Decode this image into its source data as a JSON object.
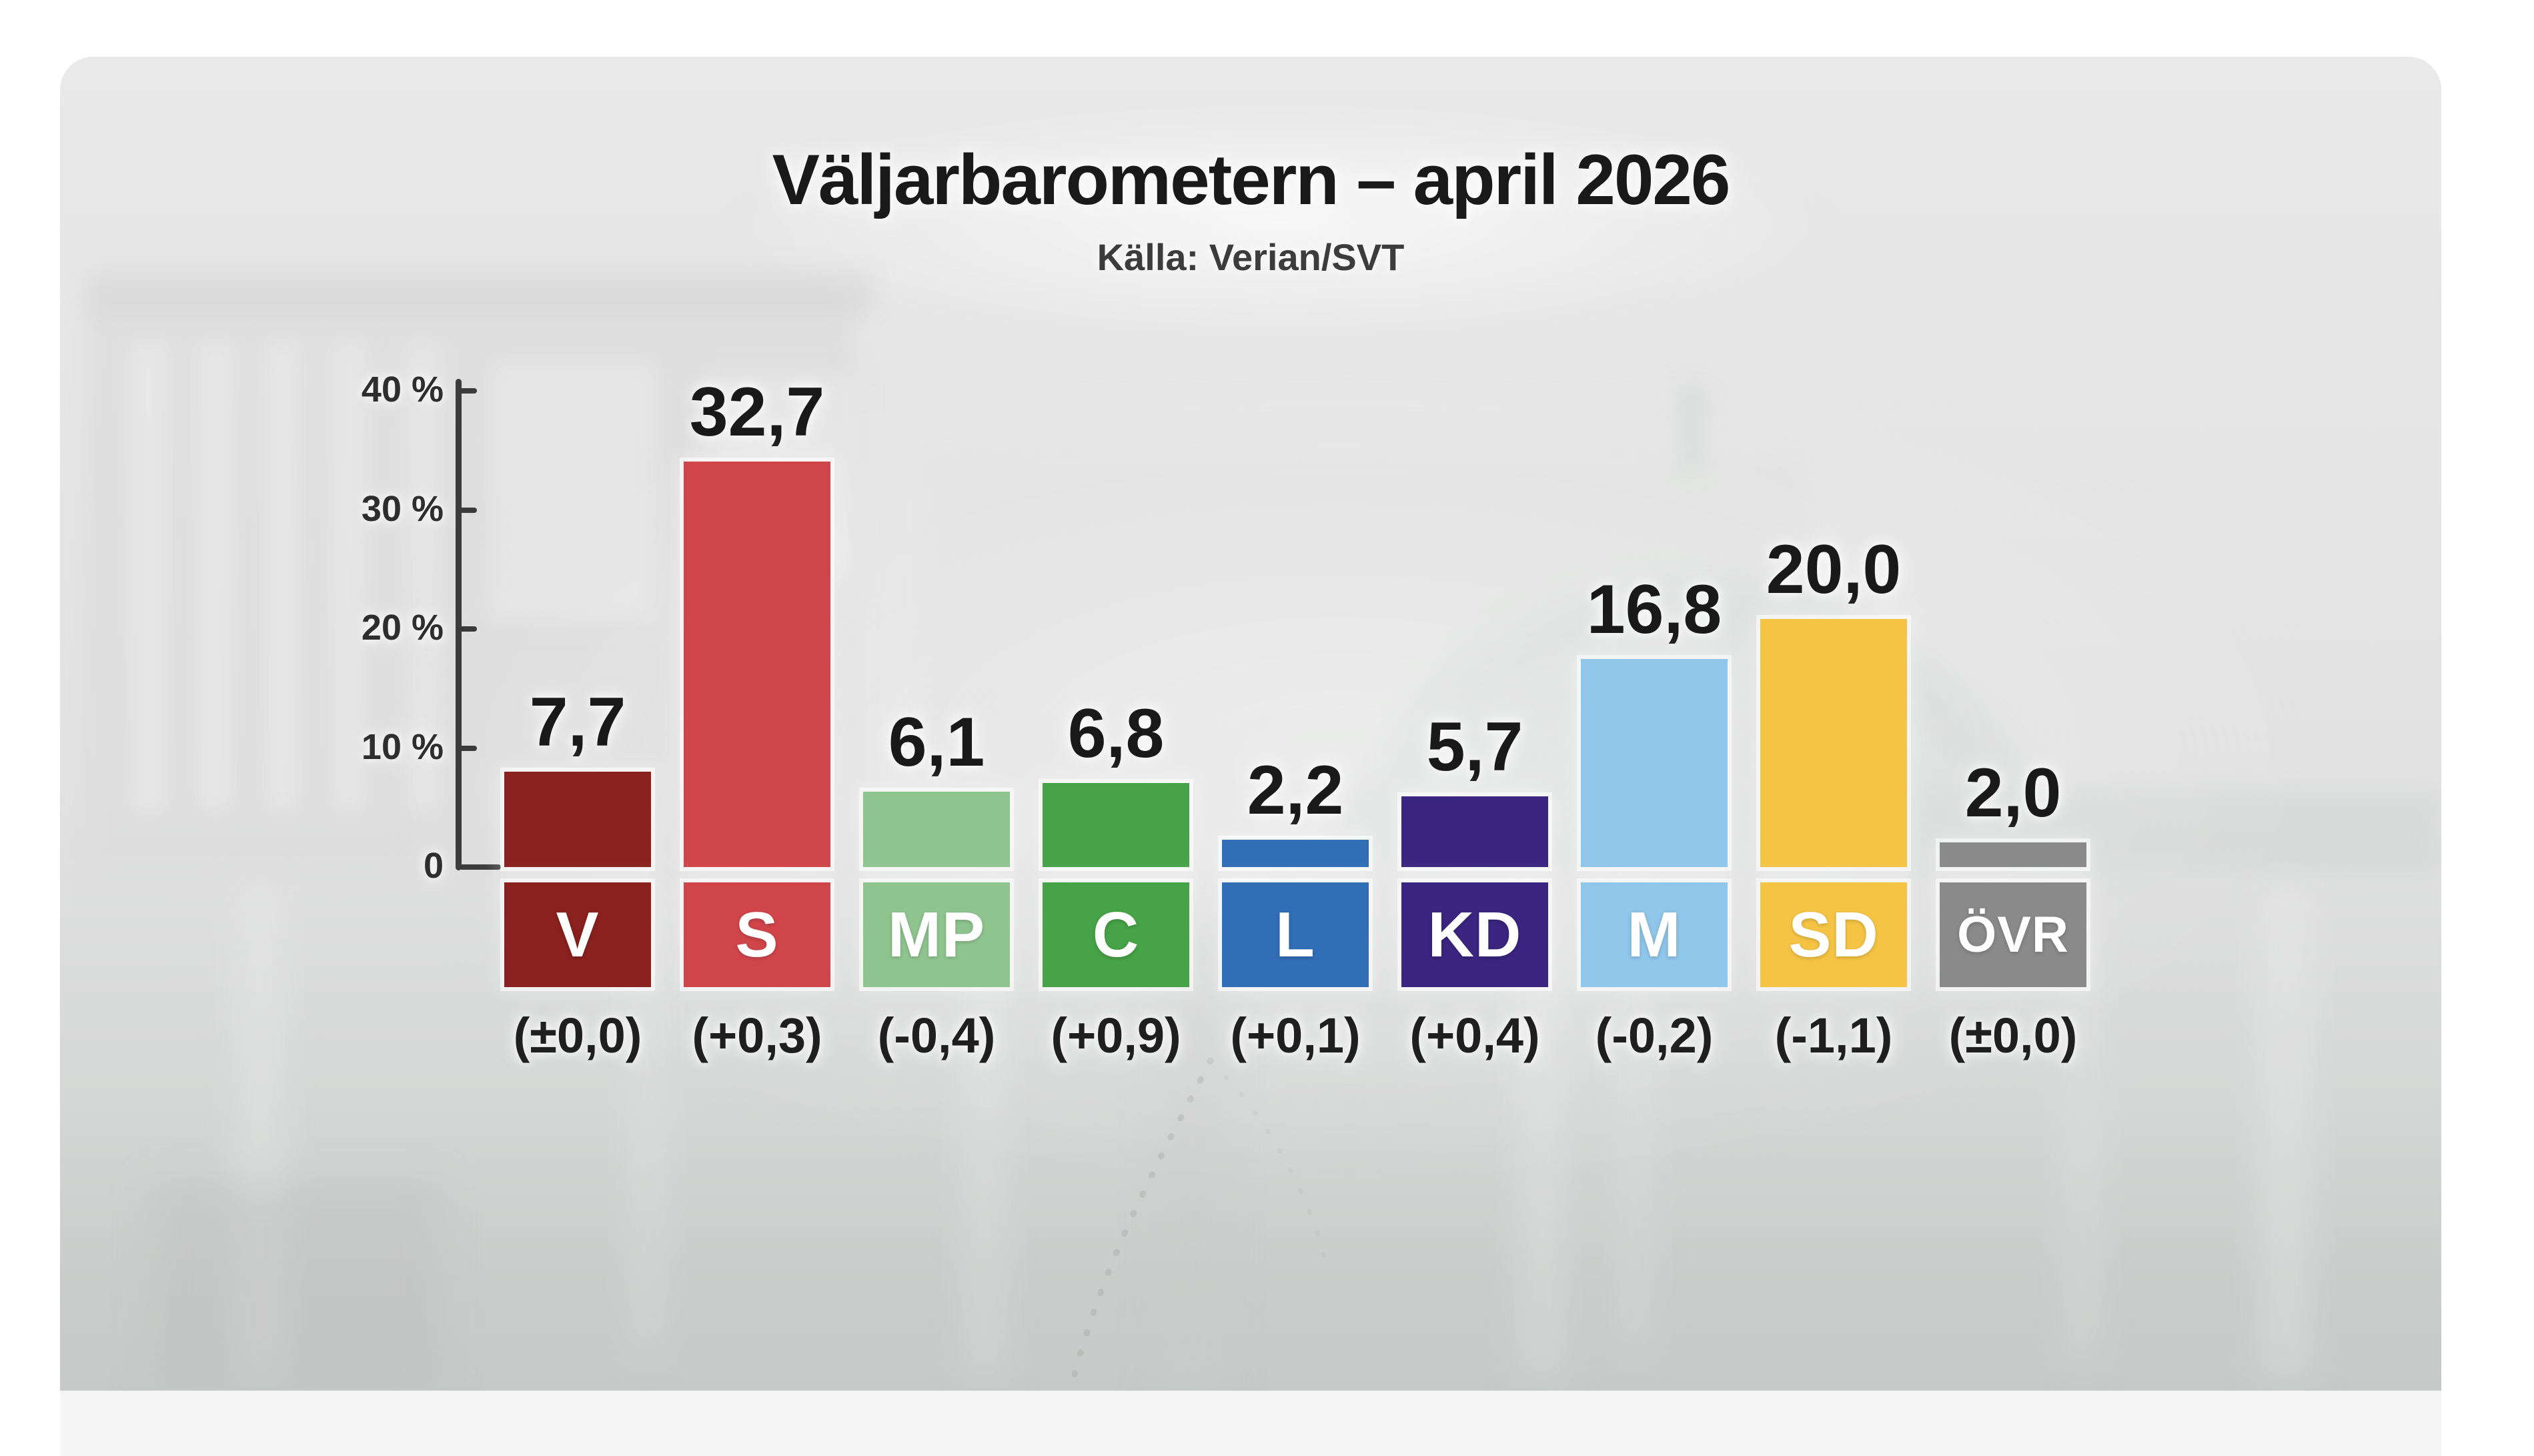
{
  "title": "Väljarbarometern – april 2026",
  "subtitle": "Källa: Verian/SVT",
  "chart_data": {
    "type": "bar",
    "title": "Väljarbarometern – april 2026",
    "subtitle": "Källa: Verian/SVT",
    "unit": "%",
    "ylim": [
      0,
      40
    ],
    "grid": false,
    "legend_position": "none",
    "decimal_separator": ",",
    "y_axis_ticks": [
      {
        "label": "40 %",
        "value": 40
      },
      {
        "label": "30 %",
        "value": 30
      },
      {
        "label": "20 %",
        "value": 20
      },
      {
        "label": "10 %",
        "value": 10
      },
      {
        "label": "0",
        "value": 0
      }
    ],
    "categories": [
      "V",
      "S",
      "MP",
      "C",
      "L",
      "KD",
      "M",
      "SD",
      "ÖVR"
    ],
    "values": [
      7.7,
      32.7,
      6.1,
      6.8,
      2.2,
      5.7,
      16.8,
      20.0,
      2.0
    ],
    "parties": [
      {
        "abbr": "V",
        "value": 7.7,
        "value_label": "7,7",
        "change_label": "(±0,0)",
        "color": "#8a211e"
      },
      {
        "abbr": "S",
        "value": 32.7,
        "value_label": "32,7",
        "change_label": "(+0,3)",
        "color": "#d0454a"
      },
      {
        "abbr": "MP",
        "value": 6.1,
        "value_label": "6,1",
        "change_label": "(-0,4)",
        "color": "#8fc48f"
      },
      {
        "abbr": "C",
        "value": 6.8,
        "value_label": "6,8",
        "change_label": "(+0,9)",
        "color": "#47a347"
      },
      {
        "abbr": "L",
        "value": 2.2,
        "value_label": "2,2",
        "change_label": "(+0,1)",
        "color": "#316eb5"
      },
      {
        "abbr": "KD",
        "value": 5.7,
        "value_label": "5,7",
        "change_label": "(+0,4)",
        "color": "#3a2580"
      },
      {
        "abbr": "M",
        "value": 16.8,
        "value_label": "16,8",
        "change_label": "(-0,2)",
        "color": "#8fc6ea"
      },
      {
        "abbr": "SD",
        "value": 20.0,
        "value_label": "20,0",
        "change_label": "(-1,1)",
        "color": "#f6c445"
      },
      {
        "abbr": "ÖVR",
        "value": 2.0,
        "value_label": "2,0",
        "change_label": "(±0,0)",
        "color": "#8a8a8a"
      }
    ],
    "bar_label_text_color": "#ffffff"
  },
  "colors": {
    "page_background": "#ffffff",
    "card_background": "#e6e6e6",
    "footer_background": "#f4f5f4",
    "title_text": "#191919",
    "subtitle_text": "#3c3c3c",
    "axis": "#3b3b3b"
  }
}
